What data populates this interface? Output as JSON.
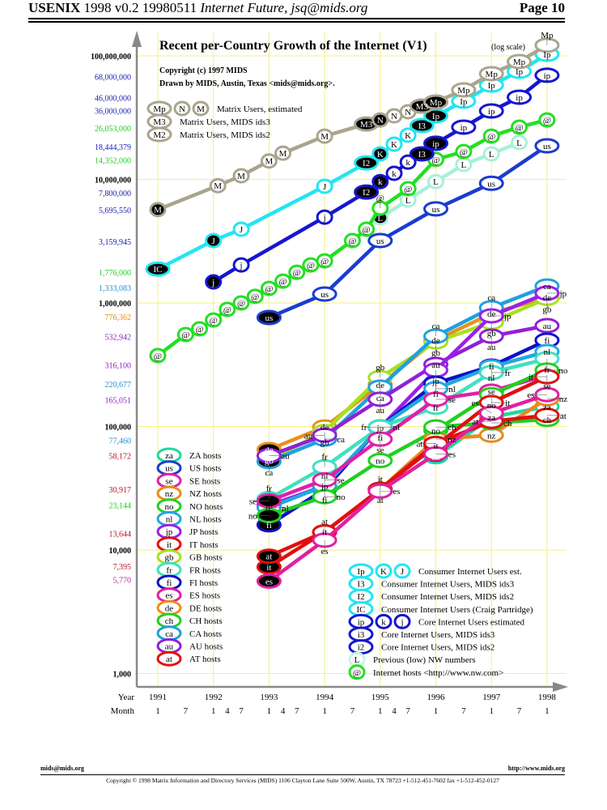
{
  "header": {
    "conference": "USENIX",
    "version": "1998 v0.2 19980511",
    "subtitle": "Internet Future, jsq@mids.org",
    "page": "Page 10"
  },
  "footer": {
    "email": "mids@mids.org",
    "url": "http://www.mids.org",
    "copyright": "Copyright © 1998 Matrix Information and Directory Services (MIDS) 1106 Clayton Lane Suite 500W, Austin, TX 78723 +1-512-451-7602 fax +1-512-452-0127"
  },
  "chart_data": {
    "type": "line",
    "title": "Recent per-Country Growth of the Internet (V1)",
    "title_note": "(log scale)",
    "credits": [
      "Copyright (c) 1997 MIDS",
      "Drawn by MIDS, Austin, Texas <mids@mids.org>."
    ],
    "y_scale": "log",
    "ylim": [
      1000,
      100000000
    ],
    "xlim": [
      1991,
      1998
    ],
    "grid": true,
    "grid_color": "#f4f080",
    "x_labels": {
      "year_label": "Year",
      "month_label": "Month",
      "years": [
        "1991",
        "1992",
        "1993",
        "1994",
        "1995",
        "1996",
        "1997",
        "1998"
      ],
      "months": [
        [
          1991,
          1
        ],
        [
          1991,
          7
        ],
        [
          1992,
          1
        ],
        [
          1992,
          4
        ],
        [
          1992,
          7
        ],
        [
          1993,
          1
        ],
        [
          1993,
          4
        ],
        [
          1993,
          7
        ],
        [
          1994,
          1
        ],
        [
          1994,
          7
        ],
        [
          1995,
          1
        ],
        [
          1995,
          4
        ],
        [
          1995,
          7
        ],
        [
          1996,
          1
        ],
        [
          1996,
          7
        ],
        [
          1997,
          1
        ],
        [
          1997,
          7
        ],
        [
          1998,
          1
        ]
      ]
    },
    "y_ticks": [
      {
        "value": 100000000,
        "label": "100,000,000",
        "color": "#000000",
        "bold": true
      },
      {
        "value": 68000000,
        "label": "68,000,000",
        "color": "#1a1ab0"
      },
      {
        "value": 46000000,
        "label": "46,000,000",
        "color": "#1a1ab0"
      },
      {
        "value": 36000000,
        "label": "36,000,000",
        "color": "#1a1ab0"
      },
      {
        "value": 26053000,
        "label": "26,053,000",
        "color": "#22cc22"
      },
      {
        "value": 18444379,
        "label": "18,444,379",
        "color": "#1a1ab0"
      },
      {
        "value": 14352000,
        "label": "14,352,000",
        "color": "#22cc22"
      },
      {
        "value": 10000000,
        "label": "10,000,000",
        "color": "#000000",
        "bold": true
      },
      {
        "value": 7800000,
        "label": "7,800,000",
        "color": "#1a1ab0"
      },
      {
        "value": 5695550,
        "label": "5,695,550",
        "color": "#1a1ab0"
      },
      {
        "value": 3159945,
        "label": "3,159,945",
        "color": "#1a1ab0"
      },
      {
        "value": 1776000,
        "label": "1,776,000",
        "color": "#22cc22"
      },
      {
        "value": 1333083,
        "label": "1,333,083",
        "color": "#2090d0"
      },
      {
        "value": 1000000,
        "label": "1,000,000",
        "color": "#000000",
        "bold": true
      },
      {
        "value": 776362,
        "label": "776,362",
        "color": "#e08a10"
      },
      {
        "value": 532942,
        "label": "532,942",
        "color": "#9020c0"
      },
      {
        "value": 316100,
        "label": "316,100",
        "color": "#9020c0"
      },
      {
        "value": 220677,
        "label": "220,677",
        "color": "#2090d0"
      },
      {
        "value": 165051,
        "label": "165,051",
        "color": "#9020c0"
      },
      {
        "value": 100000,
        "label": "100,000",
        "color": "#000000",
        "bold": true
      },
      {
        "value": 77460,
        "label": "77,460",
        "color": "#2090d0"
      },
      {
        "value": 58172,
        "label": "58,172",
        "color": "#c01020"
      },
      {
        "value": 30917,
        "label": "30,917",
        "color": "#c01020"
      },
      {
        "value": 23144,
        "label": "23,144",
        "color": "#22cc22"
      },
      {
        "value": 13644,
        "label": "13,644",
        "color": "#c01020"
      },
      {
        "value": 10000,
        "label": "10,000",
        "color": "#000000",
        "bold": true
      },
      {
        "value": 7395,
        "label": "7,395",
        "color": "#c01020"
      },
      {
        "value": 5770,
        "label": "5,770",
        "color": "#c020a0"
      },
      {
        "value": 1000,
        "label": "1,000",
        "color": "#000000",
        "bold": true
      }
    ],
    "series": [
      {
        "code": "de",
        "color": "#e8901c",
        "x": [
          1993,
          1994,
          1995,
          1996,
          1997,
          1998
        ],
        "y": [
          65000,
          99000,
          218000,
          499000,
          822000,
          1110000
        ],
        "filled": [
          0
        ]
      },
      {
        "code": "gb",
        "color": "#a8e020",
        "x": [
          1993,
          1994,
          1995,
          1996,
          1997,
          1998
        ],
        "y": [
          53000,
          91000,
          249000,
          484000,
          696000,
          1090000
        ],
        "filled": [
          0
        ]
      },
      {
        "code": "ca",
        "color": "#20a0e0",
        "x": [
          1993,
          1994,
          1995,
          1996,
          1997,
          1998
        ],
        "y": [
          52000,
          79000,
          208000,
          538000,
          914000,
          1370000
        ],
        "filled": [
          0
        ]
      },
      {
        "code": "au",
        "color": "#9020d8",
        "x": [
          1993,
          1994,
          1995,
          1996,
          1997,
          1998
        ],
        "y": [
          58000,
          85000,
          166000,
          318000,
          538000,
          655000
        ],
        "filled": []
      },
      {
        "code": "jp",
        "color": "#9a20e8",
        "x": [
          1993,
          1994,
          1995,
          1996,
          1997,
          1998
        ],
        "y": [
          23000,
          33000,
          98000,
          286000,
          786000,
          1200000
        ],
        "filled": []
      },
      {
        "code": "fi",
        "color": "#1010c8",
        "x": [
          1993,
          1994,
          1995,
          1996,
          1997,
          1998
        ],
        "y": [
          16000,
          31000,
          99000,
          224000,
          308000,
          499000
        ],
        "filled": [
          0
        ]
      },
      {
        "code": "nl",
        "color": "#20a8e0",
        "x": [
          1993,
          1994,
          1995,
          1996,
          1997,
          1998
        ],
        "y": [
          22000,
          33000,
          99000,
          202000,
          304000,
          404000
        ],
        "filled": []
      },
      {
        "code": "fr",
        "color": "#40e0c0",
        "x": [
          1993,
          1994,
          1995,
          1996,
          1997,
          1998
        ],
        "y": [
          26000,
          47000,
          99000,
          143000,
          273000,
          353000
        ],
        "filled": []
      },
      {
        "code": "se",
        "color": "#e020a8",
        "x": [
          1993,
          1994,
          1995,
          1996,
          1997,
          1998
        ],
        "y": [
          25000,
          37000,
          79000,
          166000,
          193000,
          261000
        ],
        "filled": [
          0
        ]
      },
      {
        "code": "no",
        "color": "#20d020",
        "x": [
          1993,
          1994,
          1995,
          1996,
          1997,
          1998
        ],
        "y": [
          19000,
          27000,
          53000,
          93000,
          181000,
          286000
        ],
        "filled": [
          0
        ]
      },
      {
        "code": "za",
        "color": "#20d8a0",
        "x": [
          1996,
          1997,
          1998
        ],
        "y": [
          57000,
          119000,
          145000
        ],
        "filled": [
          0
        ]
      },
      {
        "code": "nz",
        "color": "#e88a20",
        "x": [
          1995,
          1996,
          1997,
          1998
        ],
        "y": [
          31000,
          79000,
          85000,
          168000
        ],
        "filled": [
          0
        ]
      },
      {
        "code": "ch",
        "color": "#20d020",
        "x": [
          1996,
          1997,
          1998
        ],
        "y": [
          99000,
          107000,
          114000
        ],
        "filled": []
      },
      {
        "code": "it",
        "color": "#e01010",
        "x": [
          1993,
          1994,
          1995,
          1996,
          1997,
          1998
        ],
        "y": [
          7300,
          14000,
          31000,
          70000,
          156000,
          253000
        ],
        "filled": [
          0
        ]
      },
      {
        "code": "at",
        "color": "#e01010",
        "x": [
          1993,
          1994,
          1995,
          1996,
          1997,
          1998
        ],
        "y": [
          8900,
          14000,
          31000,
          73000,
          110000,
          123000
        ],
        "filled": [
          0
        ]
      },
      {
        "code": "es",
        "color": "#e020a0",
        "x": [
          1993,
          1994,
          1995,
          1996,
          1997,
          1998
        ],
        "y": [
          5600,
          12000,
          30000,
          60000,
          128000,
          181000
        ],
        "filled": [
          0
        ]
      },
      {
        "code": "us",
        "color": "#1a3cd0",
        "x": [
          1993,
          1994,
          1995,
          1996,
          1997,
          1998
        ],
        "y": [
          762000,
          1180000,
          3200000,
          5770000,
          9300000,
          18700000
        ],
        "filled": [
          0
        ]
      },
      {
        "code": "L",
        "color": "#a8f0d8",
        "x": [
          1995,
          1995.5,
          1996,
          1996.5,
          1997,
          1997.5
        ],
        "y": [
          4890000,
          6800000,
          9600000,
          13200000,
          16100000,
          19900000
        ],
        "filled": [
          0
        ]
      },
      {
        "code": "@",
        "color": "#22e022",
        "x": [
          1991,
          1991.5,
          1991.75,
          1992,
          1992.25,
          1992.5,
          1992.75,
          1993,
          1993.25,
          1993.5,
          1993.75,
          1994,
          1994.5,
          1994.75,
          1995,
          1995.5,
          1996,
          1996.5,
          1997,
          1997.5,
          1998
        ],
        "y": [
          375000,
          555000,
          617000,
          727000,
          887000,
          1000000,
          1130000,
          1310000,
          1500000,
          1770000,
          2030000,
          2190000,
          3200000,
          3950000,
          5850000,
          8400000,
          14500000,
          16800000,
          22400000,
          26500000,
          30300000
        ],
        "filled": []
      },
      {
        "code": "core",
        "color": "#1616d0",
        "x": [
          1992,
          1992.5,
          1994,
          1994.75,
          1995,
          1995.25,
          1995.5,
          1995.75,
          1996,
          1996.5,
          1997,
          1997.5,
          1998
        ],
        "y": [
          1480000,
          2030000,
          4950000,
          7900000,
          9600000,
          11200000,
          13800000,
          16100000,
          19600000,
          26500000,
          35800000,
          46300000,
          69700000
        ],
        "labels": [
          "j",
          "j",
          "j",
          "I2",
          "k",
          "k",
          "k",
          "I3",
          "ip",
          "ip",
          "ip",
          "ip",
          "ip"
        ],
        "filled": [
          0,
          3,
          4,
          7,
          8
        ]
      },
      {
        "code": "consumer",
        "color": "#22e5f2",
        "x": [
          1991,
          1992,
          1992.5,
          1994,
          1994.75,
          1995,
          1995.25,
          1995.5,
          1995.75,
          1996,
          1996.5,
          1997,
          1997.5,
          1998
        ],
        "y": [
          1880000,
          3200000,
          3950000,
          8800000,
          13600000,
          16100000,
          19300000,
          22800000,
          27300000,
          32700000,
          43000000,
          58000000,
          75000000,
          103000000
        ],
        "labels": [
          "IC",
          "J",
          "J",
          "J",
          "I2",
          "K",
          "K",
          "K",
          "I3",
          "Ip",
          "Ip",
          "Ip",
          "Ip",
          "Ip"
        ],
        "filled": [
          0,
          1,
          4,
          5,
          8,
          9
        ]
      },
      {
        "code": "matrix",
        "color": "#a9a58e",
        "x": [
          1991,
          1992.08,
          1992.5,
          1993,
          1993.25,
          1994,
          1994.75,
          1995,
          1995.25,
          1995.5,
          1995.75,
          1996,
          1996.5,
          1997,
          1997.5,
          1998
        ],
        "y": [
          5700000,
          8900000,
          10700000,
          14100000,
          16300000,
          22400000,
          28100000,
          30300000,
          32700000,
          35300000,
          39200000,
          42300000,
          53000000,
          71800000,
          90000000,
          122000000
        ],
        "labels": [
          "M",
          "M",
          "M",
          "M",
          "M",
          "M",
          "M3",
          "N",
          "N",
          "N",
          "M3",
          "Mp",
          "Mp",
          "Mp",
          "Mp",
          "Mp"
        ],
        "filled": [
          0,
          6,
          7,
          10,
          11
        ]
      }
    ],
    "legend_matrix": [
      {
        "markers": [
          "Mp",
          "N",
          "M"
        ],
        "color": "#a9a58e",
        "text": "Matrix Users, estimated"
      },
      {
        "markers": [
          "M3"
        ],
        "color": "#a9a58e",
        "text": "Matrix Users, MIDS ids3"
      },
      {
        "markers": [
          "M2"
        ],
        "color": "#a9a58e",
        "text": "Matrix Users, MIDS ids2"
      }
    ],
    "legend_hosts": [
      {
        "code": "za",
        "text": "ZA hosts",
        "color": "#20d8a0"
      },
      {
        "code": "us",
        "text": "US hosts",
        "color": "#1a3cd0"
      },
      {
        "code": "se",
        "text": "SE hosts",
        "color": "#e020a8"
      },
      {
        "code": "nz",
        "text": "NZ hosts",
        "color": "#e88a20"
      },
      {
        "code": "no",
        "text": "NO hosts",
        "color": "#20d020"
      },
      {
        "code": "nl",
        "text": "NL hosts",
        "color": "#20a8e0"
      },
      {
        "code": "jp",
        "text": "JP hosts",
        "color": "#9a20e8"
      },
      {
        "code": "it",
        "text": "IT hosts",
        "color": "#e01010"
      },
      {
        "code": "gb",
        "text": "GB hosts",
        "color": "#a8e020"
      },
      {
        "code": "fr",
        "text": "FR hosts",
        "color": "#40e0c0"
      },
      {
        "code": "fi",
        "text": "FI hosts",
        "color": "#1010c8"
      },
      {
        "code": "es",
        "text": "ES hosts",
        "color": "#e020a0"
      },
      {
        "code": "de",
        "text": "DE hosts",
        "color": "#e8901c"
      },
      {
        "code": "ch",
        "text": "CH hosts",
        "color": "#20d020"
      },
      {
        "code": "ca",
        "text": "CA hosts",
        "color": "#20a0e0"
      },
      {
        "code": "au",
        "text": "AU hosts",
        "color": "#9020d8"
      },
      {
        "code": "at",
        "text": "AT hosts",
        "color": "#e01010"
      }
    ],
    "legend_users": [
      {
        "markers": [
          "Ip",
          "K",
          "J"
        ],
        "color": "#22e5f2",
        "text": "Consumer Internet Users est."
      },
      {
        "markers": [
          "I3"
        ],
        "color": "#22e5f2",
        "text": "Consumer Internet Users, MIDS ids3"
      },
      {
        "markers": [
          "I2"
        ],
        "color": "#22e5f2",
        "text": "Consumer Internet Users, MIDS ids2"
      },
      {
        "markers": [
          "IC"
        ],
        "color": "#22e5f2",
        "text": "Consumer Internet Users (Craig Partridge)"
      },
      {
        "markers": [
          "ip",
          "k",
          "j"
        ],
        "color": "#1616d0",
        "text": "Core Internet Users estimated"
      },
      {
        "markers": [
          "i3"
        ],
        "color": "#1616d0",
        "text": "Core Internet Users, MIDS ids3"
      },
      {
        "markers": [
          "i2"
        ],
        "color": "#1616d0",
        "text": "Core Internet Users, MIDS ids2"
      },
      {
        "markers": [
          "L"
        ],
        "color": "#c8f4e4",
        "text": "Previous (low) NW numbers"
      },
      {
        "markers": [
          "@"
        ],
        "color": "#22e022",
        "text": "Internet hosts <http://www.nw.com>"
      }
    ]
  }
}
